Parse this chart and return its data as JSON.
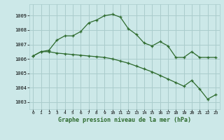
{
  "title": "Graphe pression niveau de la mer (hPa)",
  "background_color": "#cce8e8",
  "grid_color": "#aacccc",
  "line_color": "#2d6a2d",
  "x_labels": [
    "0",
    "1",
    "2",
    "3",
    "4",
    "5",
    "6",
    "7",
    "8",
    "9",
    "10",
    "11",
    "12",
    "13",
    "14",
    "15",
    "16",
    "17",
    "18",
    "19",
    "20",
    "21",
    "22",
    "23"
  ],
  "ylim": [
    1002.5,
    1009.8
  ],
  "yticks": [
    1003,
    1004,
    1005,
    1006,
    1007,
    1008,
    1009
  ],
  "line1_x": [
    0,
    1,
    2,
    3,
    4,
    5,
    6,
    7,
    8,
    9,
    10,
    11,
    12,
    13,
    14,
    15,
    16,
    17,
    18,
    19,
    20,
    21,
    22,
    23
  ],
  "line1_y": [
    1006.2,
    1006.5,
    1006.6,
    1007.3,
    1007.6,
    1007.6,
    1007.9,
    1008.5,
    1008.7,
    1009.0,
    1009.1,
    1008.9,
    1008.1,
    1007.7,
    1007.1,
    1006.9,
    1007.2,
    1006.9,
    1006.1,
    1006.1,
    1006.5,
    1006.1,
    1006.1,
    1006.1
  ],
  "line2_x": [
    0,
    1,
    2,
    3,
    4,
    5,
    6,
    7,
    8,
    9,
    10,
    11,
    12,
    13,
    14,
    15,
    16,
    17,
    18,
    19,
    20,
    21,
    22,
    23
  ],
  "line2_y": [
    1006.2,
    1006.5,
    1006.5,
    1006.4,
    1006.35,
    1006.3,
    1006.25,
    1006.2,
    1006.15,
    1006.1,
    1006.0,
    1005.85,
    1005.7,
    1005.5,
    1005.3,
    1005.1,
    1004.85,
    1004.6,
    1004.35,
    1004.1,
    1004.5,
    1003.9,
    1003.2,
    1003.5
  ]
}
